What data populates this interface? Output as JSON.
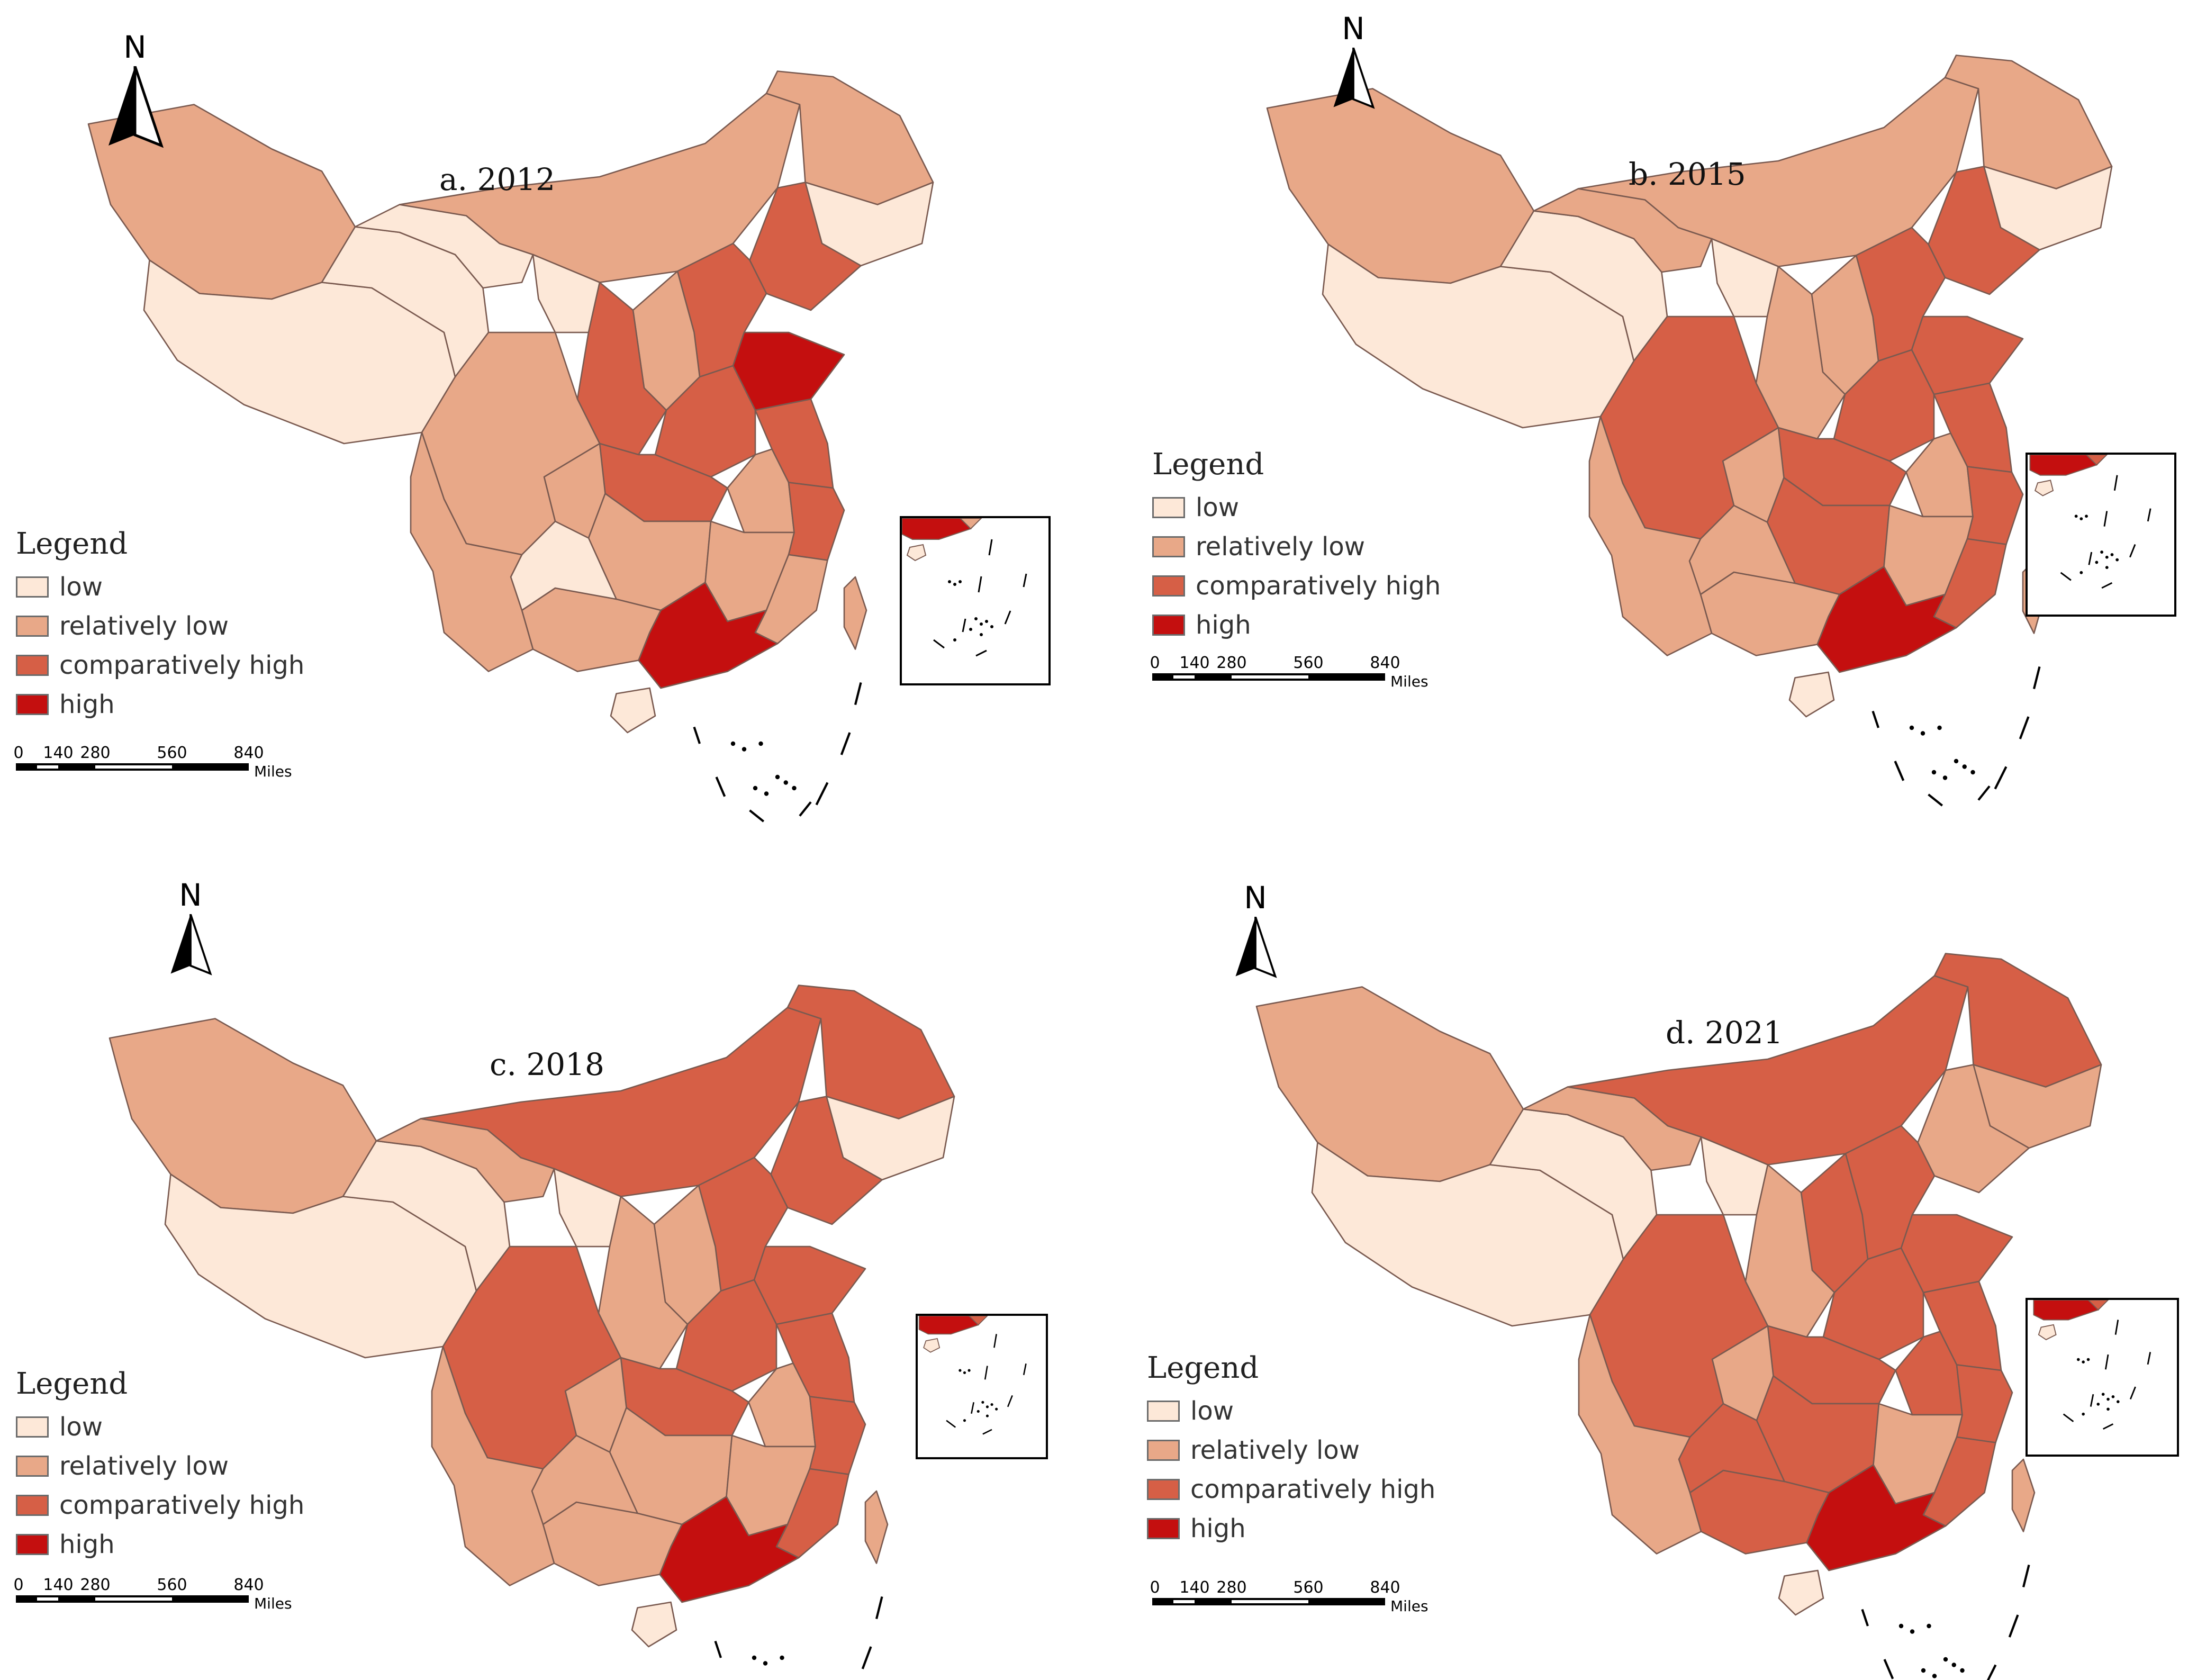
{
  "colors": {
    "low": "#fde8d8",
    "relatively_low": "#e8a888",
    "comparatively_high": "#d65f46",
    "high": "#c40f0f",
    "border": "#7a5a50"
  },
  "legend": {
    "title": "Legend",
    "items": [
      {
        "label": "low",
        "color_key": "low"
      },
      {
        "label": "relatively low",
        "color_key": "relatively_low"
      },
      {
        "label": "comparatively high",
        "color_key": "comparatively_high"
      },
      {
        "label": "high",
        "color_key": "high"
      }
    ]
  },
  "scale": {
    "ticks": [
      "0",
      "140",
      "280",
      "560",
      "840"
    ],
    "unit": "Miles"
  },
  "north_label": "N",
  "panels": [
    {
      "title": "a. 2012",
      "regions": {
        "xinjiang": "relatively_low",
        "tibet": "low",
        "qinghai": "low",
        "gansu": "low",
        "inner_mongolia": "relatively_low",
        "heilongjiang": "relatively_low",
        "jilin": "low",
        "liaoning": "comparatively_high",
        "hebei": "comparatively_high",
        "shandong": "high",
        "shanxi": "relatively_low",
        "shaanxi": "comparatively_high",
        "ningxia": "low",
        "henan": "comparatively_high",
        "jiangsu": "comparatively_high",
        "anhui": "relatively_low",
        "zhejiang": "comparatively_high",
        "sichuan": "relatively_low",
        "chongqing": "relatively_low",
        "hubei": "comparatively_high",
        "hunan": "relatively_low",
        "jiangxi": "relatively_low",
        "fujian": "relatively_low",
        "guangdong": "high",
        "guangxi": "relatively_low",
        "guizhou": "low",
        "yunnan": "relatively_low",
        "hainan": "low",
        "taiwan": "relatively_low"
      }
    },
    {
      "title": "b. 2015",
      "regions": {
        "xinjiang": "relatively_low",
        "tibet": "low",
        "qinghai": "low",
        "gansu": "relatively_low",
        "inner_mongolia": "relatively_low",
        "heilongjiang": "relatively_low",
        "jilin": "low",
        "liaoning": "comparatively_high",
        "hebei": "comparatively_high",
        "shandong": "comparatively_high",
        "shanxi": "relatively_low",
        "shaanxi": "relatively_low",
        "ningxia": "low",
        "henan": "comparatively_high",
        "jiangsu": "comparatively_high",
        "anhui": "relatively_low",
        "zhejiang": "comparatively_high",
        "sichuan": "comparatively_high",
        "chongqing": "relatively_low",
        "hubei": "comparatively_high",
        "hunan": "comparatively_high",
        "jiangxi": "relatively_low",
        "fujian": "comparatively_high",
        "guangdong": "high",
        "guangxi": "relatively_low",
        "guizhou": "relatively_low",
        "yunnan": "relatively_low",
        "hainan": "low",
        "taiwan": "relatively_low"
      }
    },
    {
      "title": "c. 2018",
      "regions": {
        "xinjiang": "relatively_low",
        "tibet": "low",
        "qinghai": "low",
        "gansu": "relatively_low",
        "inner_mongolia": "comparatively_high",
        "heilongjiang": "comparatively_high",
        "jilin": "low",
        "liaoning": "comparatively_high",
        "hebei": "comparatively_high",
        "shandong": "comparatively_high",
        "shanxi": "relatively_low",
        "shaanxi": "relatively_low",
        "ningxia": "low",
        "henan": "comparatively_high",
        "jiangsu": "comparatively_high",
        "anhui": "relatively_low",
        "zhejiang": "comparatively_high",
        "sichuan": "comparatively_high",
        "chongqing": "relatively_low",
        "hubei": "comparatively_high",
        "hunan": "relatively_low",
        "jiangxi": "relatively_low",
        "fujian": "comparatively_high",
        "guangdong": "high",
        "guangxi": "relatively_low",
        "guizhou": "relatively_low",
        "yunnan": "relatively_low",
        "hainan": "low",
        "taiwan": "relatively_low"
      }
    },
    {
      "title": "d. 2021",
      "regions": {
        "xinjiang": "relatively_low",
        "tibet": "low",
        "qinghai": "low",
        "gansu": "relatively_low",
        "inner_mongolia": "comparatively_high",
        "heilongjiang": "comparatively_high",
        "jilin": "relatively_low",
        "liaoning": "relatively_low",
        "hebei": "comparatively_high",
        "shandong": "comparatively_high",
        "shanxi": "comparatively_high",
        "shaanxi": "relatively_low",
        "ningxia": "low",
        "henan": "comparatively_high",
        "jiangsu": "comparatively_high",
        "anhui": "comparatively_high",
        "zhejiang": "comparatively_high",
        "sichuan": "comparatively_high",
        "chongqing": "relatively_low",
        "hubei": "comparatively_high",
        "hunan": "comparatively_high",
        "jiangxi": "relatively_low",
        "fujian": "comparatively_high",
        "guangdong": "high",
        "guangxi": "comparatively_high",
        "guizhou": "comparatively_high",
        "yunnan": "relatively_low",
        "hainan": "low",
        "taiwan": "relatively_low"
      }
    }
  ]
}
